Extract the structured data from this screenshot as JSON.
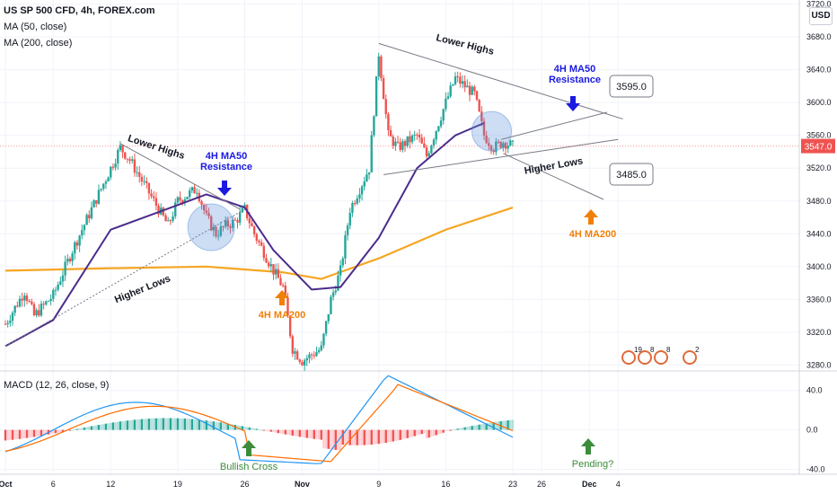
{
  "header": {
    "symbol": "US SP 500 CFD, 4h, FOREX.com",
    "ma50": "MA (50, close)",
    "ma200": "MA (200, close)",
    "macd": "MACD (12, 26, close, 9)",
    "currency": "USD",
    "last_price": "3547.0"
  },
  "chart_data": [
    {
      "type": "line",
      "title": "US SP 500 CFD, 4h, FOREX.com",
      "price_axis_ticks": [
        "3720.0",
        "3680.0",
        "3640.0",
        "3600.0",
        "3560.0",
        "3520.0",
        "3480.0",
        "3440.0",
        "3400.0",
        "3360.0",
        "3320.0",
        "3280.0"
      ],
      "time_axis_ticks": [
        "Oct",
        "6",
        "12",
        "19",
        "26",
        "Nov",
        "9",
        "16",
        "23",
        "26",
        "Dec",
        "4"
      ],
      "ylim": [
        3275,
        3725
      ],
      "series": [
        {
          "name": "MA (50, close)",
          "color": "#4a2c8c",
          "description_points": [
            [
              "Oct 1",
              3303
            ],
            [
              "Oct 6",
              3335
            ],
            [
              "Oct 12",
              3445
            ],
            [
              "Oct 19",
              3475
            ],
            [
              "Oct 22",
              3488
            ],
            [
              "Oct 26",
              3472
            ],
            [
              "Oct 29",
              3420
            ],
            [
              "Nov 2",
              3372
            ],
            [
              "Nov 5",
              3375
            ],
            [
              "Nov 9",
              3435
            ],
            [
              "Nov 13",
              3520
            ],
            [
              "Nov 17",
              3560
            ],
            [
              "Nov 20",
              3575
            ]
          ]
        },
        {
          "name": "MA (200, close)",
          "color": "#f5a623",
          "description_points": [
            [
              "Oct 1",
              3395
            ],
            [
              "Oct 12",
              3398
            ],
            [
              "Oct 22",
              3400
            ],
            [
              "Oct 30",
              3393
            ],
            [
              "Nov 3",
              3385
            ],
            [
              "Nov 9",
              3410
            ],
            [
              "Nov 16",
              3445
            ],
            [
              "Nov 23",
              3472
            ]
          ]
        }
      ],
      "annotations": [
        {
          "text": "Lower Highs",
          "color": "#131722"
        },
        {
          "text": "Higher Lows",
          "color": "#131722"
        },
        {
          "text": "4H MA50",
          "color": "#1a1ae0"
        },
        {
          "text": "Resistance",
          "color": "#1a1ae0"
        },
        {
          "text": "4H MA200",
          "color": "#f0800a"
        },
        {
          "text": "Lower Highs",
          "color": "#131722"
        },
        {
          "text": "Higher Lows",
          "color": "#131722"
        },
        {
          "text": "4H MA50",
          "color": "#1a1ae0"
        },
        {
          "text": "Resistance",
          "color": "#1a1ae0"
        },
        {
          "text": "4H MA200",
          "color": "#f0800a"
        },
        {
          "text": "3595.0",
          "color": "#131722"
        },
        {
          "text": "3485.0",
          "color": "#131722"
        }
      ],
      "event_badges": [
        "19",
        "8",
        "8",
        "2"
      ],
      "legend_placement": "top-left",
      "grid": true,
      "colors": {
        "up": "#26a69a",
        "down": "#ef5350",
        "last_price": "#ef5350"
      }
    },
    {
      "type": "line",
      "title": "MACD (12, 26, close, 9)",
      "axis_ticks": [
        "40.0",
        "0.0",
        "-40.0"
      ],
      "ylim": [
        -45,
        58
      ],
      "series": [
        {
          "name": "MACD",
          "color": "#2196f3"
        },
        {
          "name": "Signal",
          "color": "#ff6d00"
        },
        {
          "name": "Histogram",
          "colors": [
            "#26a69a",
            "#b2dfdb",
            "#ef5350",
            "#ffcdd2"
          ]
        }
      ],
      "annotations": [
        {
          "text": "Bullish Cross",
          "color": "#3c8c3c"
        },
        {
          "text": "Pending?",
          "color": "#3c8c3c"
        }
      ]
    }
  ]
}
